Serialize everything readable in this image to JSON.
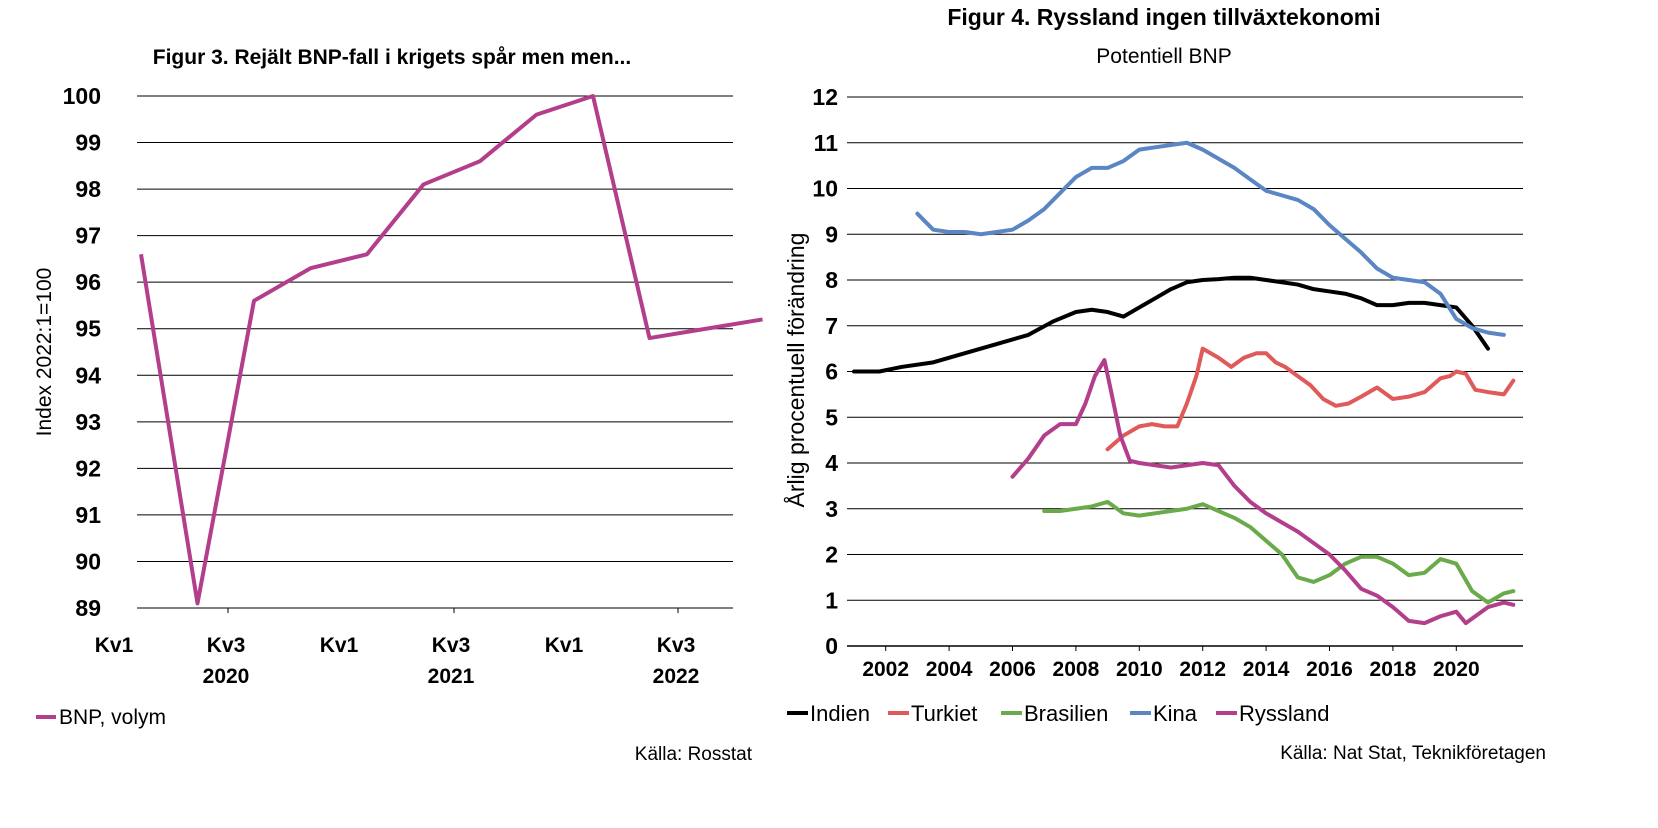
{
  "chart_data": [
    {
      "type": "line",
      "title": "Figur 3. Rejält BNP-fall i krigets spår men men...",
      "ylabel": "Index 2022:1=100",
      "ylim": [
        89,
        100
      ],
      "yticks": [
        "89",
        "90",
        "91",
        "92",
        "93",
        "94",
        "95",
        "96",
        "97",
        "98",
        "99",
        "100"
      ],
      "xticks": [
        "Kv1",
        "Kv3",
        "Kv1",
        "Kv3",
        "Kv1",
        "Kv3"
      ],
      "years": [
        "2020",
        "2021",
        "2022"
      ],
      "grid": true,
      "legend_position": "bottom-left",
      "series": [
        {
          "name": "BNP, volym",
          "color": "#b33f8c",
          "quarters": [
            "2019Q4",
            "2020Q1",
            "2020Q2",
            "2020Q3",
            "2020Q4",
            "2021Q1",
            "2021Q2",
            "2021Q3",
            "2021Q4",
            "2022Q1",
            "2022Q2",
            "2022Q3"
          ],
          "values": [
            96.6,
            89.1,
            95.6,
            96.3,
            96.6,
            98.1,
            98.6,
            99.6,
            100.0,
            94.8,
            95.0,
            95.2
          ]
        }
      ],
      "source": "Källa: Rosstat"
    },
    {
      "type": "line",
      "title": "Figur 4. Ryssland ingen tillväxtekonomi",
      "subtitle": "Potentiell BNP",
      "ylabel": "Årlig procentuell förändring",
      "ylim": [
        0,
        12
      ],
      "xlim": [
        2001,
        2022
      ],
      "yticks": [
        "0",
        "1",
        "2",
        "3",
        "4",
        "5",
        "6",
        "7",
        "8",
        "9",
        "10",
        "11",
        "12"
      ],
      "xticks": [
        "2002",
        "2004",
        "2006",
        "2008",
        "2010",
        "2012",
        "2014",
        "2016",
        "2018",
        "2020"
      ],
      "grid": true,
      "legend_position": "bottom",
      "series": [
        {
          "name": "Indien",
          "color": "#000000",
          "x": [
            2001.0,
            2001.8,
            2002.5,
            2003.5,
            2004.5,
            2005.5,
            2006.5,
            2007.3,
            2008.0,
            2008.5,
            2009.0,
            2009.5,
            2010.0,
            2010.5,
            2011.0,
            2011.5,
            2012.0,
            2012.5,
            2013.0,
            2013.5,
            2014.0,
            2014.5,
            2015.0,
            2015.5,
            2016.0,
            2016.5,
            2017.0,
            2017.5,
            2018.0,
            2018.5,
            2019.0,
            2019.5,
            2020.0,
            2020.5,
            2021.0
          ],
          "y": [
            6.0,
            6.0,
            6.1,
            6.2,
            6.4,
            6.6,
            6.8,
            7.1,
            7.3,
            7.35,
            7.3,
            7.2,
            7.4,
            7.6,
            7.8,
            7.95,
            8.0,
            8.02,
            8.05,
            8.05,
            8.0,
            7.95,
            7.9,
            7.8,
            7.75,
            7.7,
            7.6,
            7.45,
            7.45,
            7.5,
            7.5,
            7.45,
            7.4,
            7.0,
            6.5
          ]
        },
        {
          "name": "Turkiet",
          "color": "#e05a5a",
          "x": [
            2009.0,
            2009.5,
            2010.0,
            2010.4,
            2010.8,
            2011.2,
            2011.5,
            2011.8,
            2012.0,
            2012.5,
            2012.9,
            2013.3,
            2013.7,
            2014.0,
            2014.3,
            2014.6,
            2015.0,
            2015.4,
            2015.8,
            2016.2,
            2016.6,
            2017.0,
            2017.5,
            2018.0,
            2018.5,
            2019.0,
            2019.5,
            2019.8,
            2020.0,
            2020.3,
            2020.6,
            2021.0,
            2021.5,
            2021.8
          ],
          "y": [
            4.3,
            4.6,
            4.8,
            4.85,
            4.8,
            4.8,
            5.3,
            5.9,
            6.5,
            6.3,
            6.1,
            6.3,
            6.4,
            6.4,
            6.2,
            6.1,
            5.9,
            5.7,
            5.4,
            5.25,
            5.3,
            5.45,
            5.65,
            5.4,
            5.45,
            5.55,
            5.85,
            5.9,
            6.0,
            5.95,
            5.6,
            5.55,
            5.5,
            5.8
          ]
        },
        {
          "name": "Brasilien",
          "color": "#6aaa4a",
          "x": [
            2007.0,
            2007.5,
            2008.0,
            2008.5,
            2009.0,
            2009.5,
            2010.0,
            2010.5,
            2011.0,
            2011.5,
            2012.0,
            2012.5,
            2013.0,
            2013.5,
            2014.0,
            2014.5,
            2015.0,
            2015.5,
            2016.0,
            2016.5,
            2017.0,
            2017.5,
            2018.0,
            2018.5,
            2019.0,
            2019.5,
            2020.0,
            2020.5,
            2021.0,
            2021.5,
            2021.8
          ],
          "y": [
            2.95,
            2.95,
            3.0,
            3.05,
            3.15,
            2.9,
            2.85,
            2.9,
            2.95,
            3.0,
            3.1,
            2.95,
            2.8,
            2.6,
            2.3,
            2.0,
            1.5,
            1.4,
            1.55,
            1.8,
            1.95,
            1.95,
            1.8,
            1.55,
            1.6,
            1.9,
            1.8,
            1.2,
            0.95,
            1.15,
            1.2
          ]
        },
        {
          "name": "Kina",
          "color": "#5b86c4",
          "x": [
            2003.0,
            2003.5,
            2004.0,
            2004.5,
            2005.0,
            2005.5,
            2006.0,
            2006.5,
            2007.0,
            2007.5,
            2008.0,
            2008.5,
            2009.0,
            2009.5,
            2010.0,
            2010.5,
            2011.0,
            2011.5,
            2012.0,
            2012.5,
            2013.0,
            2013.5,
            2014.0,
            2014.5,
            2015.0,
            2015.5,
            2016.0,
            2016.5,
            2017.0,
            2017.5,
            2018.0,
            2018.5,
            2019.0,
            2019.5,
            2020.0,
            2020.5,
            2021.0,
            2021.5
          ],
          "y": [
            9.45,
            9.1,
            9.05,
            9.05,
            9.0,
            9.05,
            9.1,
            9.3,
            9.55,
            9.9,
            10.25,
            10.45,
            10.45,
            10.6,
            10.85,
            10.9,
            10.95,
            11.0,
            10.85,
            10.65,
            10.45,
            10.2,
            9.95,
            9.85,
            9.75,
            9.55,
            9.2,
            8.9,
            8.6,
            8.25,
            8.05,
            8.0,
            7.95,
            7.7,
            7.15,
            6.95,
            6.85,
            6.8
          ]
        },
        {
          "name": "Ryssland",
          "color": "#b33f8c",
          "x": [
            2006.0,
            2006.5,
            2007.0,
            2007.5,
            2008.0,
            2008.3,
            2008.6,
            2008.9,
            2009.1,
            2009.4,
            2009.7,
            2010.0,
            2010.5,
            2011.0,
            2011.5,
            2012.0,
            2012.5,
            2013.0,
            2013.5,
            2014.0,
            2014.5,
            2015.0,
            2015.5,
            2016.0,
            2016.5,
            2017.0,
            2017.5,
            2018.0,
            2018.5,
            2019.0,
            2019.5,
            2020.0,
            2020.3,
            2020.6,
            2021.0,
            2021.5,
            2021.8
          ],
          "y": [
            3.7,
            4.1,
            4.6,
            4.85,
            4.85,
            5.3,
            5.9,
            6.25,
            5.6,
            4.6,
            4.05,
            4.0,
            3.95,
            3.9,
            3.95,
            4.0,
            3.95,
            3.5,
            3.15,
            2.9,
            2.7,
            2.5,
            2.25,
            2.0,
            1.65,
            1.25,
            1.1,
            0.85,
            0.55,
            0.5,
            0.65,
            0.75,
            0.5,
            0.65,
            0.85,
            0.95,
            0.9
          ]
        }
      ],
      "source": "Källa: Nat Stat, Teknikföretagen"
    }
  ]
}
